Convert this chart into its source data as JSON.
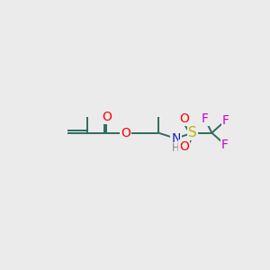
{
  "background_color": "#ebebeb",
  "bond_color": "#2e6b5e",
  "atom_colors": {
    "O": "#ff0000",
    "N": "#1a1acc",
    "S": "#b8b800",
    "F": "#cc00cc",
    "H": "#888888",
    "C": "#2e6b5e"
  },
  "figsize": [
    3.0,
    3.0
  ],
  "dpi": 100
}
